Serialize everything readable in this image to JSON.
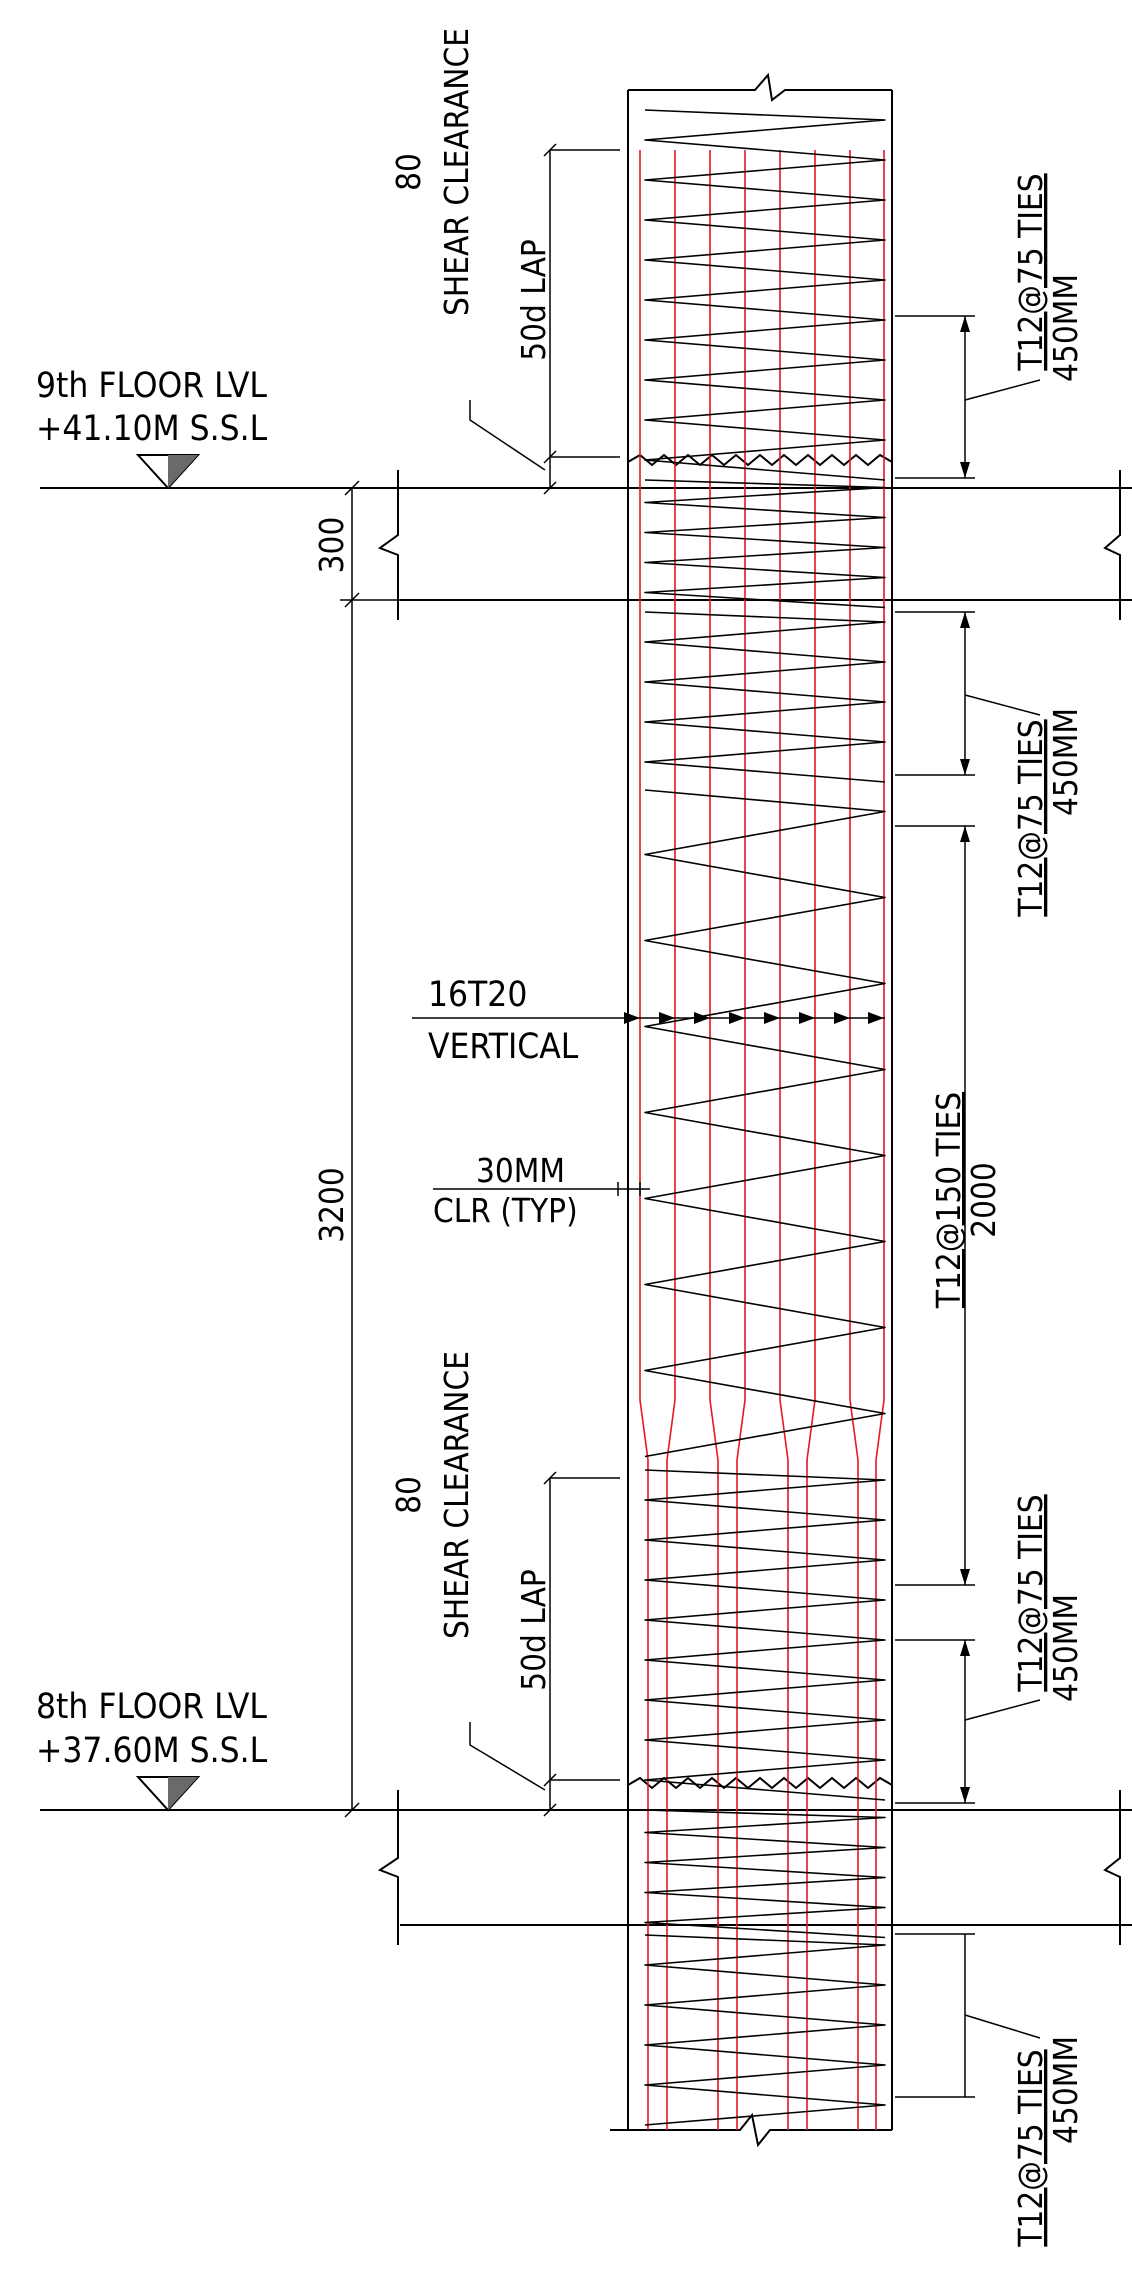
{
  "labels": {
    "floor9_name": "9th FLOOR LVL",
    "floor9_level": "+41.10M S.S.L",
    "floor8_name": "8th FLOOR LVL",
    "floor8_level": "+37.60M S.S.L",
    "slab_thickness": "300",
    "storey_height": "3200",
    "shear_clearance_value": "80",
    "shear_clearance_text": "SHEAR CLEARANCE",
    "lap_text": "50d LAP",
    "vertical_bars": "16T20",
    "vertical_bars_note": "VERTICAL",
    "cover_value": "30MM",
    "cover_note": "CLR (TYP)",
    "ties_close": "T12@75 TIES",
    "ties_close_length": "450MM",
    "ties_mid": "T12@150 TIES",
    "ties_mid_length": "2000"
  },
  "colors": {
    "line": "#000000",
    "rebar": "#e8171c",
    "level_marker": "#6a6a6a"
  }
}
